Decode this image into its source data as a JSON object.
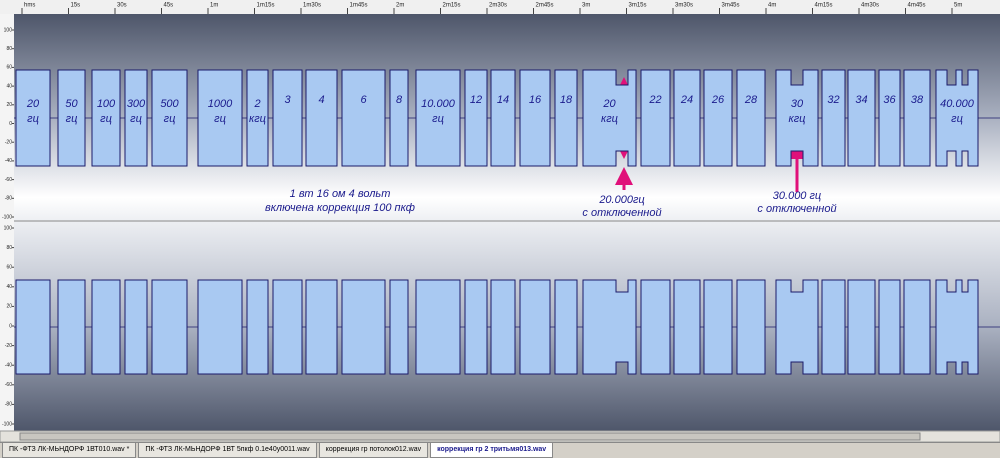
{
  "ruler": [
    "hms",
    "15s",
    "30s",
    "45s",
    "1m",
    "1m15s",
    "1m30s",
    "1m45s",
    "2m",
    "2m15s",
    "2m30s",
    "2m45s",
    "3m",
    "3m15s",
    "3m30s",
    "3m45s",
    "4m",
    "4m15s",
    "4m30s",
    "4m45s",
    "5m"
  ],
  "amplitude_labels": [
    "100",
    "80",
    "60",
    "40",
    "20",
    "0",
    "-20",
    "-40",
    "-60",
    "-80",
    "-100"
  ],
  "segments": [
    [
      "20",
      "гц"
    ],
    [
      "50",
      "гц"
    ],
    [
      "100",
      "гц"
    ],
    [
      "300",
      "гц"
    ],
    [
      "500",
      "гц"
    ],
    [
      "1000",
      "гц"
    ],
    [
      "2",
      "кгц"
    ],
    [
      "3"
    ],
    [
      "4"
    ],
    [
      "6"
    ],
    [
      "8"
    ],
    [
      "10.000",
      "гц"
    ],
    [
      "12"
    ],
    [
      "14"
    ],
    [
      "16"
    ],
    [
      "18"
    ],
    [
      "20",
      "кгц"
    ],
    [
      "22"
    ],
    [
      "24"
    ],
    [
      "26"
    ],
    [
      "28"
    ],
    [
      "30",
      "кгц"
    ],
    [
      "32"
    ],
    [
      "34"
    ],
    [
      "36"
    ],
    [
      "38"
    ],
    [
      "40.000",
      "гц"
    ]
  ],
  "annotations": {
    "setup": [
      "1 вт 16 ом 4 вольт",
      "включена коррекция 100 пкф"
    ],
    "note_20k": [
      "20.000гц",
      "с отключенной"
    ],
    "note_30k": [
      "30.000 гц",
      "с отключенной"
    ]
  },
  "tabs": [
    "ПК -ФТЗ ЛК-МЬНДОРФ 1ВТ010.wav *",
    "ПК -ФТЗ ЛК-МЬНДОРФ 1ВТ 5пкф 0.1е40у0011.wav",
    "коррекция гр потолок012.wav",
    "коррекция гр 2 тритьмя013.wav"
  ]
}
